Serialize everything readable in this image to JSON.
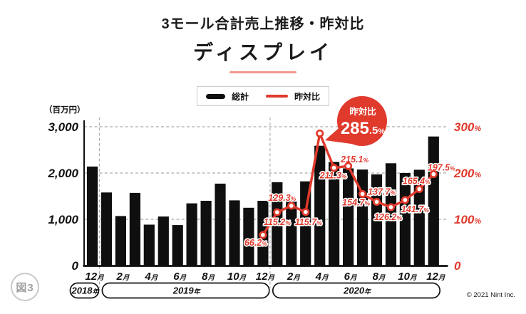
{
  "header": {
    "title": "3モール合計売上推移・昨対比",
    "subtitle": "ディスプレイ"
  },
  "legend": {
    "items": [
      {
        "label": "総計",
        "swatch": "black-bar"
      },
      {
        "label": "昨対比",
        "swatch": "red-line"
      }
    ]
  },
  "figure_label": "図3",
  "copyright": "© 2021 Nint Inc.",
  "colors": {
    "red": "#e03a2c",
    "bar": "#0f0f0f",
    "underline": "#f2998f",
    "grid": "#ababab"
  },
  "chart_data": {
    "type": "combo-bar-line",
    "title": "3モール合計売上推移・昨対比",
    "subtitle": "ディスプレイ",
    "unit_label": "（百万円）",
    "categories": [
      "2018/12",
      "2019/1",
      "2019/2",
      "2019/3",
      "2019/4",
      "2019/5",
      "2019/6",
      "2019/7",
      "2019/8",
      "2019/9",
      "2019/10",
      "2019/11",
      "2019/12",
      "2020/1",
      "2020/2",
      "2020/3",
      "2020/4",
      "2020/5",
      "2020/6",
      "2020/7",
      "2020/8",
      "2020/9",
      "2020/10",
      "2020/11",
      "2020/12"
    ],
    "series": [
      {
        "name": "総計",
        "type": "bar",
        "axis": "left",
        "values": [
          2140,
          1580,
          1070,
          1570,
          885,
          1060,
          875,
          1345,
          1400,
          1770,
          1410,
          1250,
          1400,
          1800,
          1385,
          1820,
          2590,
          2240,
          2100,
          2075,
          1970,
          2210,
          2000,
          2070,
          2790
        ]
      },
      {
        "name": "昨対比",
        "type": "line",
        "axis": "right",
        "values": [
          null,
          null,
          null,
          null,
          null,
          null,
          null,
          null,
          null,
          null,
          null,
          null,
          66.2,
          115.2,
          129.3,
          115.7,
          285.5,
          211.3,
          215.1,
          154.7,
          137.7,
          126.2,
          141.7,
          165.4,
          197.5
        ]
      }
    ],
    "left_axis": {
      "range": [
        0,
        3000
      ],
      "ticks": [
        {
          "value": 0,
          "label": "0"
        },
        {
          "value": 1000,
          "label": "1,000"
        },
        {
          "value": 2000,
          "label": "2,000"
        },
        {
          "value": 3000,
          "label": "3,000"
        }
      ]
    },
    "right_axis": {
      "range": [
        0,
        300
      ],
      "ticks": [
        {
          "value": 0,
          "label": "0",
          "suffix": ""
        },
        {
          "value": 100,
          "label": "100",
          "suffix": "%"
        },
        {
          "value": 200,
          "label": "200",
          "suffix": "%"
        },
        {
          "value": 300,
          "label": "300",
          "suffix": "%"
        }
      ]
    },
    "x_tick_indices": [
      0,
      2,
      4,
      6,
      8,
      10,
      12,
      14,
      16,
      18,
      20,
      22,
      24
    ],
    "month_suffix": "月",
    "year_suffix": "年",
    "years": [
      {
        "label": "2018",
        "start": 0,
        "end": 0
      },
      {
        "label": "2019",
        "start": 1,
        "end": 12
      },
      {
        "label": "2020",
        "start": 13,
        "end": 24
      }
    ],
    "grid": true,
    "legend_position": "top-center",
    "callout": {
      "label": "昨対比",
      "value": "285.5",
      "suffix": "%",
      "month_index": 16
    },
    "line_label_offsets": {
      "12": [
        -10,
        15
      ],
      "13": [
        0,
        18
      ],
      "14": [
        -13,
        -7
      ],
      "15": [
        4,
        18
      ],
      "17": [
        -1,
        15
      ],
      "18": [
        9,
        -5
      ],
      "19": [
        -9,
        16
      ],
      "20": [
        7,
        -10
      ],
      "21": [
        -4,
        18
      ],
      "22": [
        14,
        17
      ],
      "23": [
        -4,
        -7
      ],
      "24": [
        11,
        -5
      ]
    }
  }
}
